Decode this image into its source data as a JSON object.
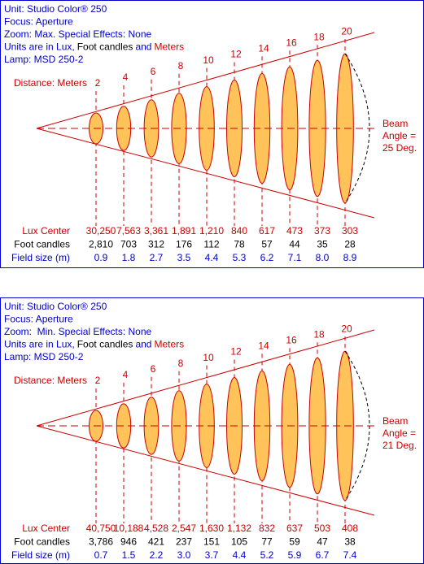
{
  "panels": [
    {
      "header": [
        "Unit: Studio Color® 250",
        "Focus: Aperture",
        "Zoom: Max. Special Effects: None"
      ],
      "units_line": [
        "Units are in Lux,",
        "Foot candles",
        "and",
        "Meters"
      ],
      "lamp": "Lamp: MSD 250-2",
      "distance_label": "Distance: Meters",
      "distances": [
        "2",
        "4",
        "6",
        "8",
        "10",
        "12",
        "14",
        "16",
        "18",
        "20"
      ],
      "beam_angle": [
        "Beam",
        "Angle =",
        "25 Deg."
      ],
      "rows": [
        {
          "label": "Lux Center",
          "values": [
            "30,250",
            "7,563",
            "3,361",
            "1,891",
            "1,210",
            "840",
            "617",
            "473",
            "373",
            "303"
          ]
        },
        {
          "label": "Foot candles",
          "values": [
            "2,810",
            "703",
            "312",
            "176",
            "112",
            "78",
            "57",
            "44",
            "35",
            "28"
          ]
        },
        {
          "label": "Field size (m)",
          "values": [
            "0.9",
            "1.8",
            "2.7",
            "3.5",
            "4.4",
            "5.3",
            "6.2",
            "7.1",
            "8.0",
            "8.9"
          ]
        }
      ]
    },
    {
      "header": [
        "Unit: Studio Color® 250",
        "Focus: Aperture",
        "Zoom:  Min. Special Effects: None"
      ],
      "units_line": [
        "Units are in Lux,",
        "Foot candles",
        "and",
        "Meters"
      ],
      "lamp": "Lamp: MSD 250-2",
      "distance_label": "Distance: Meters",
      "distances": [
        "2",
        "4",
        "6",
        "8",
        "10",
        "12",
        "14",
        "16",
        "18",
        "20"
      ],
      "beam_angle": [
        "Beam",
        "Angle =",
        "21 Deg."
      ],
      "rows": [
        {
          "label": "Lux Center",
          "values": [
            "40,750",
            "10,188",
            "4,528",
            "2,547",
            "1,630",
            "1,132",
            "832",
            "637",
            "503",
            "408"
          ]
        },
        {
          "label": "Foot candles",
          "values": [
            "3,786",
            "946",
            "421",
            "237",
            "151",
            "105",
            "77",
            "59",
            "47",
            "38"
          ]
        },
        {
          "label": "Field size (m)",
          "values": [
            "0.7",
            "1.5",
            "2.2",
            "3.0",
            "3.7",
            "4.4",
            "5.2",
            "5.9",
            "6.7",
            "7.4"
          ]
        }
      ]
    }
  ]
}
